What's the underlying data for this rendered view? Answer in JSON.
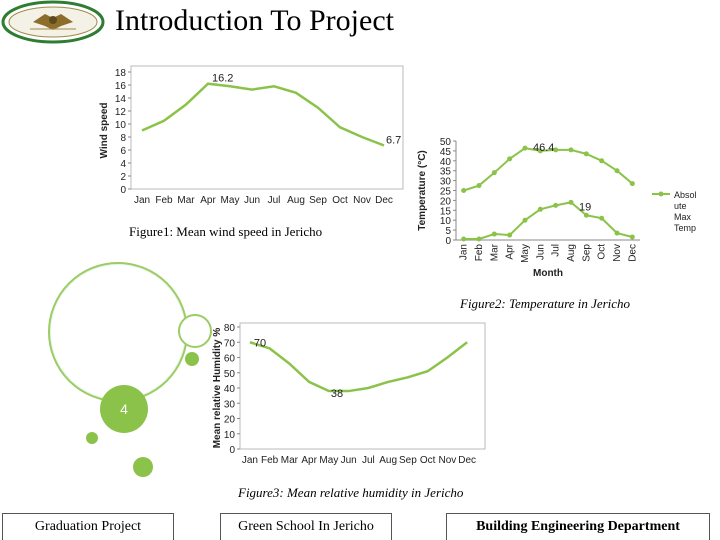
{
  "header": {
    "title": "Introduction To Project",
    "accent_color": "#2e7d32"
  },
  "decorations": {
    "step_number": "4",
    "circle_color": "#8bc34a"
  },
  "figures": {
    "wind_caption": "Figure1: Mean wind speed in Jericho",
    "temp_caption": "Figure2: Temperature in Jericho",
    "humidity_caption": "Figure3: Mean relative humidity in Jericho"
  },
  "footer": {
    "left": "Graduation Project",
    "center": "Green School In Jericho",
    "right": "Building Engineering Department"
  },
  "chart_data": [
    {
      "type": "line",
      "title": "",
      "xlabel": "",
      "ylabel": "Wind speed",
      "categories": [
        "Jan",
        "Feb",
        "Mar",
        "Apr",
        "May",
        "Jun",
        "Jul",
        "Aug",
        "Sep",
        "Oct",
        "Nov",
        "Dec"
      ],
      "series": [
        {
          "name": "",
          "values": [
            9.0,
            10.5,
            13.0,
            16.2,
            15.8,
            15.3,
            15.8,
            14.8,
            12.5,
            9.5,
            8.0,
            6.7
          ]
        }
      ],
      "data_labels": [
        {
          "index": 3,
          "text": "16.2"
        },
        {
          "index": 11,
          "text": "6.7"
        }
      ],
      "ylim": [
        0,
        18
      ],
      "yticks": [
        0,
        2,
        4,
        6,
        8,
        10,
        12,
        14,
        16,
        18
      ],
      "line_color": "#8bc34a",
      "grid": false
    },
    {
      "type": "line",
      "title": "",
      "xlabel": "Month",
      "ylabel": "Temperature (°C)",
      "categories": [
        "Jan",
        "Feb",
        "Mar",
        "Apr",
        "May",
        "Jun",
        "Jul",
        "Aug",
        "Sep",
        "Oct",
        "Nov",
        "Dec"
      ],
      "series": [
        {
          "name": "Max Temp",
          "values": [
            25,
            27.5,
            34,
            41,
            46.4,
            45,
            45.5,
            45.5,
            43.5,
            40,
            35,
            28.5
          ]
        },
        {
          "name": "Absolute",
          "values": [
            0.5,
            0.5,
            3,
            2.5,
            10,
            15.5,
            17.5,
            19,
            12.5,
            11,
            3.5,
            1.5
          ]
        }
      ],
      "legend_text": "Absol ute Max Temp",
      "data_labels": [
        {
          "series": 0,
          "index": 4,
          "text": "46.4"
        },
        {
          "series": 1,
          "index": 7,
          "text": "19"
        }
      ],
      "ylim": [
        0,
        50
      ],
      "yticks": [
        0,
        5,
        10,
        15,
        20,
        25,
        30,
        35,
        40,
        45,
        50
      ],
      "line_color": "#8bc34a",
      "legend": "right",
      "grid": false
    },
    {
      "type": "line",
      "title": "",
      "xlabel": "",
      "ylabel": "Mean relative Humidity %",
      "categories": [
        "Jan",
        "Feb",
        "Mar",
        "Apr",
        "May",
        "Jun",
        "Jul",
        "Aug",
        "Sep",
        "Oct",
        "Nov",
        "Dec"
      ],
      "series": [
        {
          "name": "",
          "values": [
            70,
            66,
            56,
            44,
            38,
            38,
            40,
            44,
            47,
            51,
            60,
            70
          ]
        }
      ],
      "data_labels": [
        {
          "index": 0,
          "text": "70"
        },
        {
          "index": 4,
          "text": "38"
        }
      ],
      "ylim": [
        0,
        80
      ],
      "yticks": [
        0,
        10,
        20,
        30,
        40,
        50,
        60,
        70,
        80
      ],
      "line_color": "#8bc34a",
      "grid": false
    }
  ]
}
